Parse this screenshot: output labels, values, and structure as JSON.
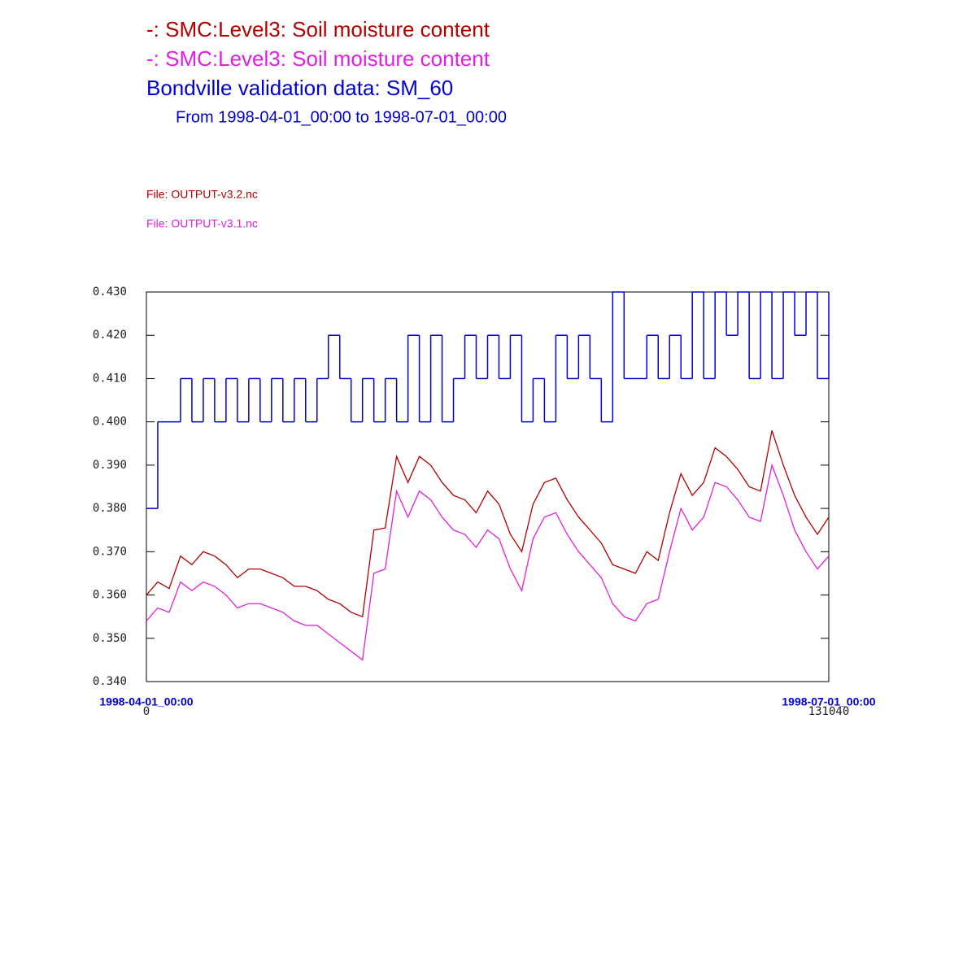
{
  "chart_data": {
    "type": "line",
    "title_lines": [
      "-:  SMC:Level3: Soil moisture content",
      "-:  SMC:Level3: Soil moisture content",
      "Bondville validation data:  SM_60"
    ],
    "subtitle": "From 1998-04-01_00:00 to 1998-07-01_00:00",
    "files": [
      "File: OUTPUT-v3.2.nc",
      "File: OUTPUT-v3.1.nc"
    ],
    "x": [
      0,
      2184,
      4368,
      6552,
      8736,
      10920,
      13104,
      15288,
      17472,
      19656,
      21840,
      24024,
      26208,
      28392,
      30576,
      32760,
      34944,
      37128,
      39312,
      41496,
      43680,
      45864,
      48048,
      50232,
      52416,
      54600,
      56784,
      58968,
      61152,
      63336,
      65520,
      67704,
      69888,
      72072,
      74256,
      76440,
      78624,
      80808,
      82992,
      85176,
      87360,
      89544,
      91728,
      93912,
      96096,
      98280,
      100464,
      102648,
      104832,
      107016,
      109200,
      111384,
      113568,
      115752,
      117936,
      120120,
      122304,
      124488,
      126672,
      128856,
      131040
    ],
    "series": [
      {
        "name": "-:  SMC:Level3: Soil moisture content",
        "color": "#b00000",
        "values": [
          0.36,
          0.363,
          0.3615,
          0.369,
          0.367,
          0.37,
          0.369,
          0.367,
          0.364,
          0.366,
          0.366,
          0.365,
          0.364,
          0.362,
          0.362,
          0.361,
          0.359,
          0.358,
          0.356,
          0.355,
          0.375,
          0.3755,
          0.392,
          0.386,
          0.392,
          0.39,
          0.386,
          0.383,
          0.382,
          0.379,
          0.384,
          0.381,
          0.374,
          0.37,
          0.381,
          0.386,
          0.387,
          0.382,
          0.378,
          0.375,
          0.372,
          0.367,
          0.366,
          0.365,
          0.37,
          0.368,
          0.379,
          0.388,
          0.383,
          0.386,
          0.394,
          0.392,
          0.389,
          0.385,
          0.384,
          0.398,
          0.39,
          0.383,
          0.378,
          0.374,
          0.378
        ]
      },
      {
        "name": "-:  SMC:Level3: Soil moisture content",
        "color": "#e020e0",
        "values": [
          0.354,
          0.357,
          0.356,
          0.363,
          0.361,
          0.363,
          0.362,
          0.36,
          0.357,
          0.358,
          0.358,
          0.357,
          0.356,
          0.354,
          0.353,
          0.353,
          0.351,
          0.349,
          0.347,
          0.345,
          0.365,
          0.366,
          0.384,
          0.378,
          0.384,
          0.382,
          0.378,
          0.375,
          0.374,
          0.371,
          0.375,
          0.373,
          0.366,
          0.361,
          0.373,
          0.378,
          0.379,
          0.374,
          0.37,
          0.367,
          0.364,
          0.358,
          0.355,
          0.354,
          0.358,
          0.359,
          0.37,
          0.38,
          0.375,
          0.378,
          0.386,
          0.385,
          0.382,
          0.378,
          0.377,
          0.39,
          0.383,
          0.375,
          0.37,
          0.366,
          0.369
        ]
      },
      {
        "name": "Bondville validation data:  SM_60",
        "color": "#0000d0",
        "step": true,
        "values": [
          0.38,
          0.4,
          0.4,
          0.41,
          0.4,
          0.41,
          0.4,
          0.41,
          0.4,
          0.41,
          0.4,
          0.41,
          0.4,
          0.41,
          0.4,
          0.41,
          0.42,
          0.41,
          0.4,
          0.41,
          0.4,
          0.41,
          0.4,
          0.42,
          0.4,
          0.42,
          0.4,
          0.41,
          0.42,
          0.41,
          0.42,
          0.41,
          0.42,
          0.4,
          0.41,
          0.4,
          0.42,
          0.41,
          0.42,
          0.41,
          0.4,
          0.43,
          0.41,
          0.41,
          0.42,
          0.41,
          0.42,
          0.41,
          0.43,
          0.41,
          0.43,
          0.42,
          0.43,
          0.41,
          0.43,
          0.41,
          0.43,
          0.42,
          0.43,
          0.41,
          0.43
        ]
      }
    ],
    "xlim": [
      0,
      131040
    ],
    "xticks": [
      0,
      131040
    ],
    "xtick_dates": [
      "1998-04-01_00:00",
      "1998-07-01_00:00"
    ],
    "ylim": [
      0.34,
      0.43
    ],
    "yticks": [
      {
        "value": 0.34,
        "label": "0.340"
      },
      {
        "value": 0.35,
        "label": "0.350"
      },
      {
        "value": 0.36,
        "label": "0.360"
      },
      {
        "value": 0.37,
        "label": "0.370"
      },
      {
        "value": 0.38,
        "label": "0.380"
      },
      {
        "value": 0.39,
        "label": "0.390"
      },
      {
        "value": 0.4,
        "label": "0.400"
      },
      {
        "value": 0.41,
        "label": "0.410"
      },
      {
        "value": 0.42,
        "label": "0.420"
      },
      {
        "value": 0.43,
        "label": "0.430"
      }
    ]
  }
}
